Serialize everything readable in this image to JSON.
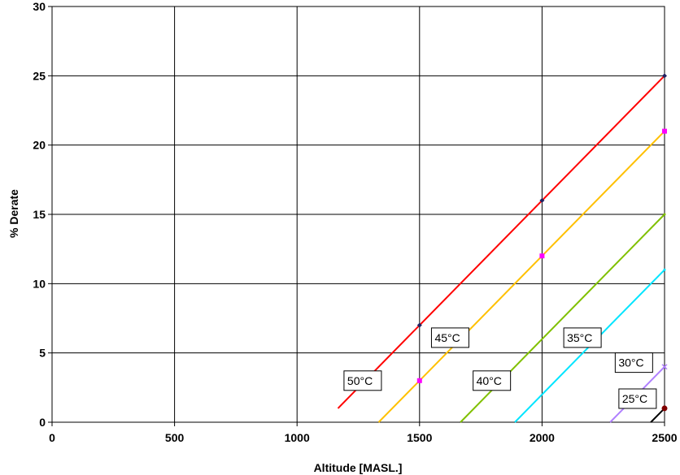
{
  "chart_data": {
    "type": "line",
    "title": "",
    "xlabel": "Altitude [MASL.]",
    "ylabel": "% Derate",
    "xlim": [
      0,
      2500
    ],
    "ylim": [
      0,
      30
    ],
    "xticks": [
      0,
      500,
      1000,
      1500,
      2000,
      2500
    ],
    "yticks": [
      0,
      5,
      10,
      15,
      20,
      25,
      30
    ],
    "grid": true,
    "series": [
      {
        "name": "50°C",
        "color": "#ff0000",
        "marker": "diamond",
        "points": [
          [
            1167,
            1
          ],
          [
            1500,
            7
          ],
          [
            2000,
            16
          ],
          [
            2500,
            25
          ]
        ],
        "markers": [
          [
            1500,
            7
          ],
          [
            2000,
            16
          ],
          [
            2500,
            25
          ]
        ],
        "label_at": [
          1268,
          3.0
        ]
      },
      {
        "name": "45°C",
        "color": "#ffc000",
        "marker": "square",
        "markerColor": "#ff00ff",
        "points": [
          [
            1333,
            0
          ],
          [
            1500,
            3
          ],
          [
            2000,
            12
          ],
          [
            2500,
            21
          ]
        ],
        "markers": [
          [
            1500,
            3
          ],
          [
            2000,
            12
          ],
          [
            2500,
            21
          ]
        ],
        "label_at": [
          1625,
          6.1
        ]
      },
      {
        "name": "40°C",
        "color": "#80c000",
        "marker": "none",
        "points": [
          [
            1667,
            0
          ],
          [
            2500,
            15
          ]
        ],
        "markers": [
          [
            2500,
            15
          ]
        ],
        "label_at": [
          1795,
          3.0
        ]
      },
      {
        "name": "35°C",
        "color": "#00e5ff",
        "marker": "none",
        "points": [
          [
            1889,
            0
          ],
          [
            2500,
            11
          ]
        ],
        "markers": [
          [
            2500,
            11
          ]
        ],
        "label_at": [
          2165,
          6.1
        ]
      },
      {
        "name": "30°C",
        "color": "#b080ff",
        "marker": "x",
        "points": [
          [
            2278,
            0
          ],
          [
            2500,
            4
          ]
        ],
        "markers": [
          [
            2500,
            4
          ]
        ],
        "label_at": [
          2375,
          4.3
        ]
      },
      {
        "name": "25°C",
        "color": "#000000",
        "marker": "circle",
        "markerColor": "#800000",
        "points": [
          [
            2444,
            0
          ],
          [
            2500,
            1
          ]
        ],
        "markers": [
          [
            2500,
            1
          ]
        ],
        "label_at": [
          2390,
          1.7
        ]
      }
    ]
  }
}
